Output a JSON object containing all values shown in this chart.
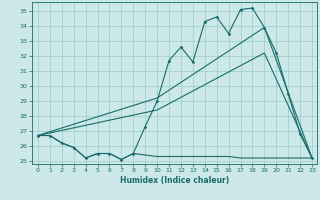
{
  "xlabel": "Humidex (Indice chaleur)",
  "bg_color": "#cce8e8",
  "grid_color": "#99cccc",
  "line_color": "#1a6b6b",
  "xlim": [
    -0.5,
    23.4
  ],
  "ylim": [
    24.8,
    35.6
  ],
  "xticks": [
    0,
    1,
    2,
    3,
    4,
    5,
    6,
    7,
    8,
    9,
    10,
    11,
    12,
    13,
    14,
    15,
    16,
    17,
    18,
    19,
    20,
    21,
    22,
    23
  ],
  "yticks": [
    25,
    26,
    27,
    28,
    29,
    30,
    31,
    32,
    33,
    34,
    35
  ],
  "series1_x": [
    0,
    1,
    2,
    3,
    4,
    5,
    6,
    7,
    8,
    9,
    10,
    11,
    12,
    13,
    14,
    15,
    16,
    17,
    18,
    19,
    20,
    21,
    22,
    23
  ],
  "series1_y": [
    26.7,
    26.7,
    26.2,
    25.9,
    25.2,
    25.5,
    25.5,
    25.1,
    25.5,
    27.3,
    29.0,
    31.7,
    32.6,
    31.6,
    34.3,
    34.6,
    33.5,
    35.1,
    35.2,
    33.9,
    32.2,
    29.5,
    26.8,
    25.2
  ],
  "series2_x": [
    0,
    1,
    2,
    3,
    4,
    5,
    6,
    7,
    8,
    9,
    10,
    11,
    12,
    13,
    14,
    15,
    16,
    17,
    18,
    19,
    20,
    21,
    22,
    23
  ],
  "series2_y": [
    26.7,
    26.7,
    26.2,
    25.9,
    25.2,
    25.5,
    25.5,
    25.1,
    25.5,
    25.4,
    25.3,
    25.3,
    25.3,
    25.3,
    25.3,
    25.3,
    25.3,
    25.2,
    25.2,
    25.2,
    25.2,
    25.2,
    25.2,
    25.2
  ],
  "series3_x": [
    0,
    10,
    19,
    23
  ],
  "series3_y": [
    26.7,
    29.2,
    33.9,
    25.2
  ],
  "series4_x": [
    0,
    10,
    19,
    23
  ],
  "series4_y": [
    26.7,
    28.4,
    32.2,
    25.2
  ]
}
